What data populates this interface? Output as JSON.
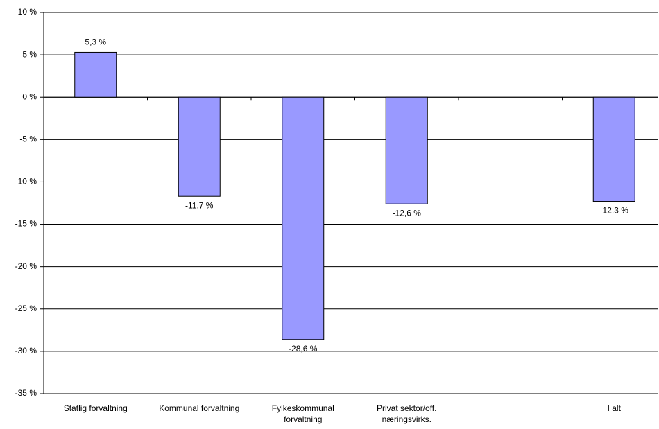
{
  "chart_data": {
    "type": "bar",
    "categories": [
      "Statlig forvaltning",
      "Kommunal forvaltning",
      "Fylkeskommunal forvaltning",
      "Privat sektor/off. næringsvirks.",
      null,
      "I alt"
    ],
    "values": [
      5.3,
      -11.7,
      -28.6,
      -12.6,
      null,
      -12.3
    ],
    "value_labels": [
      "5,3 %",
      "-11,7 %",
      "-28,6 %",
      "-12,6 %",
      null,
      "-12,3 %"
    ],
    "color": "#9999ff",
    "ylim": [
      -35,
      10
    ],
    "yticks": [
      {
        "value": -35,
        "label": "-35 %"
      },
      {
        "value": -30,
        "label": "-30 %"
      },
      {
        "value": -25,
        "label": "-25 %"
      },
      {
        "value": -20,
        "label": "-20 %"
      },
      {
        "value": -15,
        "label": "-15 %"
      },
      {
        "value": -10,
        "label": "-10 %"
      },
      {
        "value": -5,
        "label": "-5 %"
      },
      {
        "value": 0,
        "label": "0 %"
      },
      {
        "value": 5,
        "label": "5 %"
      },
      {
        "value": 10,
        "label": "10 %"
      }
    ],
    "grid": true
  }
}
